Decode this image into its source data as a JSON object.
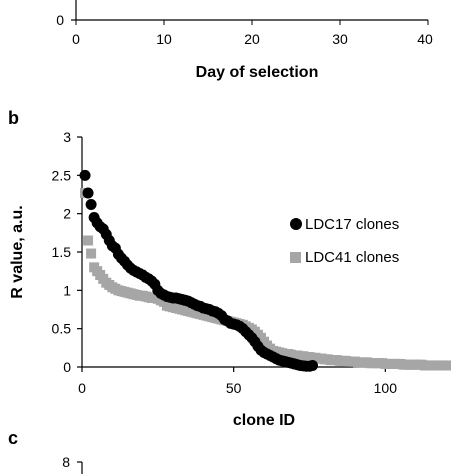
{
  "colors": {
    "black_series": "#000000",
    "gray_series": "#a6a6a6",
    "axis": "#000000"
  },
  "top_panel": {
    "xlabel": "Day of selection",
    "x_ticks": [
      "0",
      "10",
      "20",
      "30",
      "40"
    ],
    "y_ticks": [
      "0"
    ]
  },
  "panel_b": {
    "letter": "b",
    "ylabel": "R value, a.u.",
    "xlabel": "clone ID"
  },
  "panel_c": {
    "letter": "c",
    "y_ticks": [
      "8"
    ]
  },
  "chart_data": [
    {
      "type": "scatter",
      "panel": "b",
      "xlabel": "clone ID",
      "ylabel": "R value, a.u.",
      "xlim": [
        0,
        120
      ],
      "ylim": [
        0,
        3
      ],
      "x_ticks": [
        "0",
        "50",
        "100"
      ],
      "y_ticks": [
        "0",
        "0.5",
        "1",
        "1.5",
        "2",
        "2.5",
        "3"
      ],
      "grid": false,
      "legend_position": "right",
      "series": [
        {
          "name": "LDC17 clones",
          "color": "#000000",
          "marker": "circle",
          "x": [
            1,
            2,
            3,
            4,
            5,
            6,
            7,
            8,
            9,
            10,
            11,
            12,
            13,
            14,
            15,
            16,
            17,
            18,
            19,
            20,
            21,
            22,
            23,
            24,
            25,
            26,
            27,
            28,
            29,
            30,
            31,
            32,
            33,
            34,
            35,
            36,
            37,
            38,
            39,
            40,
            41,
            42,
            43,
            44,
            45,
            46,
            47,
            48,
            49,
            50,
            51,
            52,
            53,
            54,
            55,
            56,
            57,
            58,
            59,
            60,
            61,
            62,
            63,
            64,
            65,
            66,
            67,
            68,
            69,
            70,
            71,
            72,
            73,
            74,
            75,
            76
          ],
          "y": [
            2.5,
            2.27,
            2.12,
            1.95,
            1.88,
            1.83,
            1.8,
            1.73,
            1.65,
            1.58,
            1.55,
            1.47,
            1.42,
            1.38,
            1.33,
            1.29,
            1.26,
            1.24,
            1.22,
            1.2,
            1.17,
            1.15,
            1.12,
            1.08,
            1.0,
            0.96,
            0.94,
            0.92,
            0.91,
            0.9,
            0.9,
            0.89,
            0.88,
            0.87,
            0.86,
            0.84,
            0.82,
            0.8,
            0.79,
            0.77,
            0.76,
            0.75,
            0.73,
            0.72,
            0.7,
            0.67,
            0.62,
            0.6,
            0.57,
            0.56,
            0.55,
            0.53,
            0.5,
            0.46,
            0.42,
            0.38,
            0.33,
            0.27,
            0.22,
            0.19,
            0.17,
            0.15,
            0.13,
            0.11,
            0.09,
            0.08,
            0.07,
            0.06,
            0.05,
            0.04,
            0.03,
            0.02,
            0.015,
            0.01,
            0.01,
            0.02
          ]
        },
        {
          "name": "LDC41 clones",
          "color": "#a6a6a6",
          "marker": "square",
          "x": [
            1,
            2,
            3,
            4,
            5,
            6,
            7,
            8,
            9,
            10,
            11,
            12,
            13,
            14,
            15,
            16,
            17,
            18,
            19,
            20,
            21,
            22,
            23,
            24,
            25,
            26,
            27,
            28,
            29,
            30,
            31,
            32,
            33,
            34,
            35,
            36,
            37,
            38,
            39,
            40,
            41,
            42,
            43,
            44,
            45,
            46,
            47,
            48,
            49,
            50,
            51,
            52,
            53,
            54,
            55,
            56,
            57,
            58,
            59,
            60,
            61,
            62,
            63,
            64,
            65,
            66,
            67,
            68,
            69,
            70,
            71,
            72,
            73,
            74,
            75,
            76,
            77,
            78,
            79,
            80,
            81,
            82,
            83,
            84,
            85,
            86,
            87,
            88,
            89,
            90,
            91,
            92,
            93,
            94,
            95,
            96,
            97,
            98,
            99,
            100,
            101,
            102,
            103,
            104,
            105,
            106,
            107,
            108,
            109,
            110,
            111,
            112,
            113,
            114,
            115,
            116,
            117,
            118,
            119,
            120
          ],
          "y": [
            2.27,
            1.65,
            1.48,
            1.3,
            1.25,
            1.2,
            1.15,
            1.1,
            1.07,
            1.04,
            1.02,
            1.0,
            0.99,
            0.98,
            0.97,
            0.96,
            0.95,
            0.94,
            0.93,
            0.93,
            0.92,
            0.91,
            0.9,
            0.9,
            0.89,
            0.87,
            0.85,
            0.8,
            0.79,
            0.78,
            0.77,
            0.76,
            0.75,
            0.74,
            0.73,
            0.72,
            0.71,
            0.7,
            0.69,
            0.68,
            0.67,
            0.66,
            0.65,
            0.64,
            0.63,
            0.62,
            0.61,
            0.6,
            0.59,
            0.58,
            0.57,
            0.56,
            0.55,
            0.53,
            0.51,
            0.49,
            0.46,
            0.42,
            0.38,
            0.33,
            0.28,
            0.24,
            0.21,
            0.2,
            0.19,
            0.18,
            0.17,
            0.17,
            0.16,
            0.15,
            0.15,
            0.14,
            0.14,
            0.13,
            0.13,
            0.12,
            0.12,
            0.11,
            0.11,
            0.1,
            0.1,
            0.09,
            0.09,
            0.09,
            0.08,
            0.08,
            0.08,
            0.07,
            0.07,
            0.07,
            0.06,
            0.06,
            0.06,
            0.06,
            0.05,
            0.05,
            0.05,
            0.05,
            0.05,
            0.04,
            0.04,
            0.04,
            0.04,
            0.04,
            0.04,
            0.03,
            0.03,
            0.03,
            0.03,
            0.03,
            0.03,
            0.03,
            0.02,
            0.02,
            0.02,
            0.02,
            0.02,
            0.02,
            0.02,
            0.02
          ]
        }
      ]
    }
  ]
}
